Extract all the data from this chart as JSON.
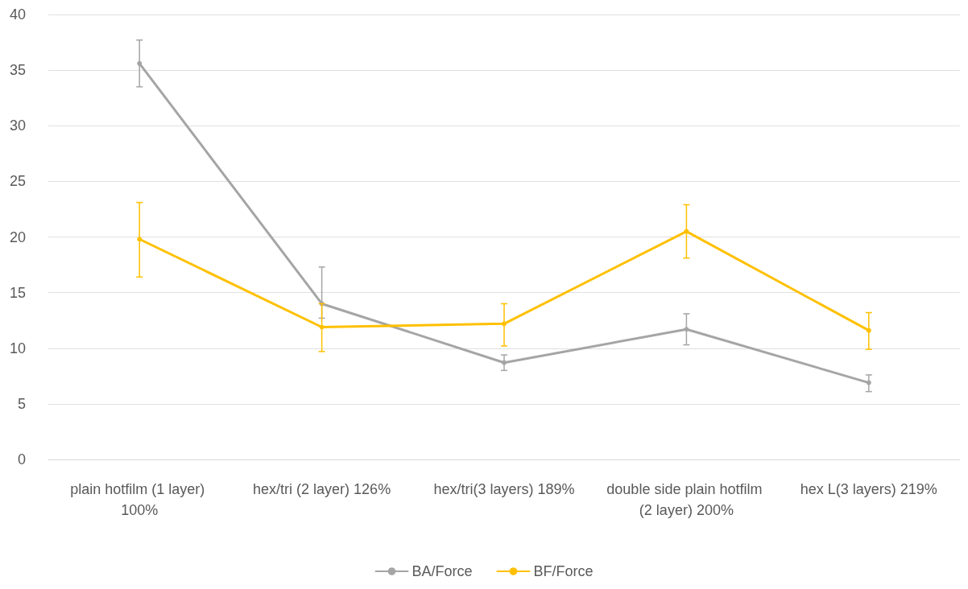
{
  "chart_data": {
    "type": "line",
    "categories": [
      "plain hotfilm (1 layer) 100%",
      "hex/tri (2 layer) 126%",
      "hex/tri(3 layers) 189%",
      "double side plain hotfilm (2 layer) 200%",
      "hex L(3 layers) 219%"
    ],
    "series": [
      {
        "name": "BA/Force",
        "color": "#a5a5a5",
        "values": [
          35.6,
          14.0,
          8.7,
          11.7,
          6.9
        ],
        "errors": [
          [
            33.5,
            37.7
          ],
          [
            12.7,
            17.3
          ],
          [
            8.0,
            9.4
          ],
          [
            10.3,
            13.1
          ],
          [
            6.1,
            7.6
          ]
        ]
      },
      {
        "name": "BF/Force",
        "color": "#ffc000",
        "values": [
          19.8,
          11.9,
          12.2,
          20.5,
          11.6
        ],
        "errors": [
          [
            16.4,
            23.1
          ],
          [
            9.7,
            14.0
          ],
          [
            10.2,
            14.0
          ],
          [
            18.1,
            22.9
          ],
          [
            9.9,
            13.2
          ]
        ]
      }
    ],
    "ylim": [
      0,
      40
    ],
    "yticks": [
      0,
      5,
      10,
      15,
      20,
      25,
      30,
      35,
      40
    ],
    "grid": "y",
    "legend": "bottom",
    "marker": "circle",
    "line_style": "solid"
  }
}
